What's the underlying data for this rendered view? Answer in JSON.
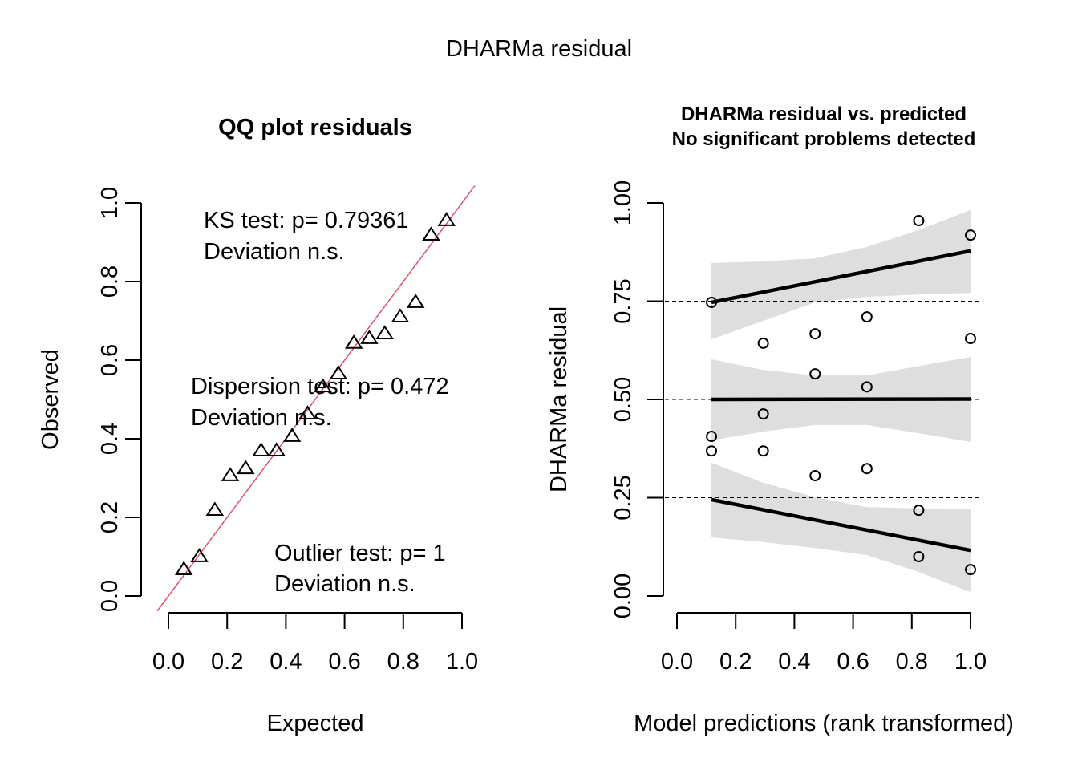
{
  "figure": {
    "title": "DHARMa residual"
  },
  "chart_data": [
    {
      "type": "scatter",
      "title": "QQ plot residuals",
      "xlabel": "Expected",
      "ylabel": "Observed",
      "xlim": [
        0,
        1
      ],
      "ylim": [
        0,
        1
      ],
      "xticks": [
        "0.0",
        "0.2",
        "0.4",
        "0.6",
        "0.8",
        "1.0"
      ],
      "xtick_values": [
        0,
        0.2,
        0.4,
        0.6,
        0.8,
        1.0
      ],
      "yticks": [
        "0.0",
        "0.2",
        "0.4",
        "0.6",
        "0.8",
        "1.0"
      ],
      "ytick_values": [
        0,
        0.2,
        0.4,
        0.6,
        0.8,
        1.0
      ],
      "marker": "triangle",
      "reference_line": {
        "intercept": 0,
        "slope": 1,
        "color": "#df536b"
      },
      "points": {
        "expected": [
          0.0526,
          0.1053,
          0.1579,
          0.2105,
          0.2632,
          0.3158,
          0.3684,
          0.4211,
          0.4737,
          0.5263,
          0.5789,
          0.6316,
          0.6842,
          0.7368,
          0.7895,
          0.8421,
          0.8947,
          0.9474
        ],
        "observed": [
          0.067,
          0.1,
          0.218,
          0.306,
          0.324,
          0.369,
          0.369,
          0.406,
          0.463,
          0.532,
          0.565,
          0.643,
          0.655,
          0.667,
          0.71,
          0.747,
          0.918,
          0.955
        ]
      },
      "annotations": [
        {
          "line1": "KS test: p= 0.79361",
          "line2": "Deviation  n.s."
        },
        {
          "line1": "Dispersion test: p= 0.472",
          "line2": "Deviation  n.s."
        },
        {
          "line1": "Outlier test: p= 1",
          "line2": "Deviation  n.s."
        }
      ]
    },
    {
      "type": "scatter",
      "title": "DHARMa residual vs. predicted",
      "subtitle": "No significant problems detected",
      "xlabel": "Model predictions (rank transformed)",
      "ylabel": "DHARMa residual",
      "xlim": [
        0,
        1
      ],
      "ylim": [
        0,
        1
      ],
      "xticks": [
        "0.0",
        "0.2",
        "0.4",
        "0.6",
        "0.8",
        "1.0"
      ],
      "xtick_values": [
        0,
        0.2,
        0.4,
        0.6,
        0.8,
        1.0
      ],
      "yticks": [
        "0.00",
        "0.25",
        "0.50",
        "0.75",
        "1.00"
      ],
      "ytick_values": [
        0,
        0.25,
        0.5,
        0.75,
        1.0
      ],
      "marker": "circle",
      "reference_lines": [
        0.25,
        0.5,
        0.75
      ],
      "points": {
        "x": [
          0.1176,
          0.1176,
          0.1176,
          0.2941,
          0.2941,
          0.2941,
          0.4706,
          0.4706,
          0.4706,
          0.6471,
          0.6471,
          0.6471,
          0.8235,
          0.8235,
          0.8235,
          1.0,
          1.0,
          1.0
        ],
        "y": [
          0.747,
          0.406,
          0.369,
          0.643,
          0.463,
          0.369,
          0.667,
          0.565,
          0.306,
          0.71,
          0.532,
          0.324,
          0.955,
          0.218,
          0.1,
          0.918,
          0.655,
          0.067
        ]
      },
      "quantile_fits": [
        {
          "quantile": 0.75,
          "x": [
            0.1176,
            1.0
          ],
          "fit": [
            0.747,
            0.878
          ],
          "band_x": [
            0.1176,
            0.2941,
            0.4706,
            0.6471,
            0.8235,
            1.0
          ],
          "band_upper": [
            0.847,
            0.851,
            0.859,
            0.888,
            0.931,
            0.982
          ],
          "band_lower": [
            0.653,
            0.7,
            0.747,
            0.761,
            0.767,
            0.771
          ]
        },
        {
          "quantile": 0.5,
          "x": [
            0.1176,
            1.0
          ],
          "fit": [
            0.5,
            0.501
          ],
          "band_x": [
            0.1176,
            0.2941,
            0.4706,
            0.6471,
            0.8235,
            1.0
          ],
          "band_upper": [
            0.602,
            0.575,
            0.561,
            0.561,
            0.585,
            0.608
          ],
          "band_lower": [
            0.396,
            0.418,
            0.435,
            0.435,
            0.414,
            0.392
          ]
        },
        {
          "quantile": 0.25,
          "x": [
            0.1176,
            1.0
          ],
          "fit": [
            0.245,
            0.116
          ],
          "band_x": [
            0.1176,
            0.2941,
            0.4706,
            0.6471,
            0.8235,
            1.0
          ],
          "band_upper": [
            0.339,
            0.288,
            0.251,
            0.226,
            0.223,
            0.222
          ],
          "band_lower": [
            0.149,
            0.137,
            0.122,
            0.104,
            0.061,
            0.01
          ]
        }
      ],
      "band_color": "#dedede"
    }
  ]
}
